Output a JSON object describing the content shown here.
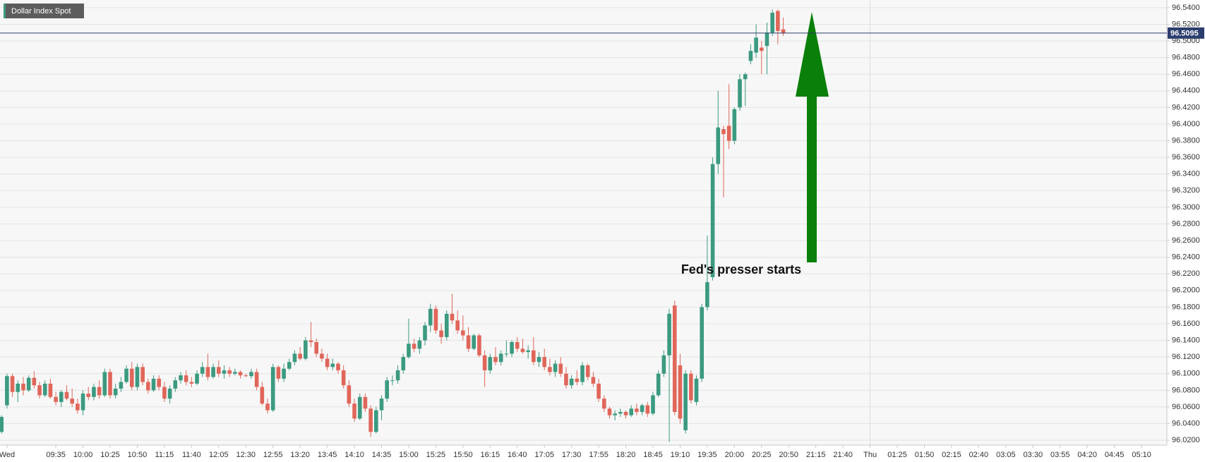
{
  "chart_data": {
    "type": "candlestick",
    "title": "Dollar Index Spot",
    "annotation": "Fed's presser starts",
    "last_price": 96.5095,
    "up_color": "#3b9a80",
    "down_color": "#e0665a",
    "last_price_color": "#2c3e6e",
    "arrow_color": "#0a800a",
    "grid": true,
    "ylim": [
      96.015,
      96.545
    ],
    "yticks": [
      {
        "value": 96.02,
        "label": "96.0200"
      },
      {
        "value": 96.04,
        "label": "96.0400"
      },
      {
        "value": 96.06,
        "label": "96.0600"
      },
      {
        "value": 96.08,
        "label": "96.0800"
      },
      {
        "value": 96.1,
        "label": "96.1000"
      },
      {
        "value": 96.12,
        "label": "96.1200"
      },
      {
        "value": 96.14,
        "label": "96.1400"
      },
      {
        "value": 96.16,
        "label": "96.1600"
      },
      {
        "value": 96.18,
        "label": "96.1800"
      },
      {
        "value": 96.2,
        "label": "96.2000"
      },
      {
        "value": 96.22,
        "label": "96.2200"
      },
      {
        "value": 96.24,
        "label": "96.2400"
      },
      {
        "value": 96.26,
        "label": "96.2600"
      },
      {
        "value": 96.28,
        "label": "96.2800"
      },
      {
        "value": 96.3,
        "label": "96.3000"
      },
      {
        "value": 96.32,
        "label": "96.3200"
      },
      {
        "value": 96.34,
        "label": "96.3400"
      },
      {
        "value": 96.36,
        "label": "96.3600"
      },
      {
        "value": 96.38,
        "label": "96.3800"
      },
      {
        "value": 96.4,
        "label": "96.4000"
      },
      {
        "value": 96.42,
        "label": "96.4200"
      },
      {
        "value": 96.44,
        "label": "96.4400"
      },
      {
        "value": 96.46,
        "label": "96.4600"
      },
      {
        "value": 96.48,
        "label": "96.4800"
      },
      {
        "value": 96.5,
        "label": "96.5000"
      },
      {
        "value": 96.52,
        "label": "96.5200"
      },
      {
        "value": 96.54,
        "label": "96.5400"
      }
    ],
    "categories": [
      null,
      "Wed",
      null,
      null,
      null,
      null,
      null,
      null,
      null,
      null,
      "09:35",
      null,
      null,
      null,
      null,
      "10:00",
      null,
      null,
      null,
      null,
      "10:25",
      null,
      null,
      null,
      null,
      "10:50",
      null,
      null,
      null,
      null,
      "11:15",
      null,
      null,
      null,
      null,
      "11:40",
      null,
      null,
      null,
      null,
      "12:05",
      null,
      null,
      null,
      null,
      "12:30",
      null,
      null,
      null,
      null,
      "12:55",
      null,
      null,
      null,
      null,
      "13:20",
      null,
      null,
      null,
      null,
      "13:45",
      null,
      null,
      null,
      null,
      "14:10",
      null,
      null,
      null,
      null,
      "14:35",
      null,
      null,
      null,
      null,
      "15:00",
      null,
      null,
      null,
      null,
      "15:25",
      null,
      null,
      null,
      null,
      "15:50",
      null,
      null,
      null,
      null,
      "16:15",
      null,
      null,
      null,
      null,
      "16:40",
      null,
      null,
      null,
      null,
      "17:05",
      null,
      null,
      null,
      null,
      "17:30",
      null,
      null,
      null,
      null,
      "17:55",
      null,
      null,
      null,
      null,
      "18:20",
      null,
      null,
      null,
      null,
      "18:45",
      null,
      null,
      null,
      null,
      "19:10",
      null,
      null,
      null,
      null,
      "19:35",
      null,
      null,
      null,
      null,
      "20:00",
      null,
      null,
      null,
      null,
      "20:25",
      null,
      null,
      null,
      null,
      "20:50",
      null,
      null,
      null,
      null,
      "21:15",
      null,
      null,
      null,
      null,
      "21:40",
      null,
      null,
      null,
      null,
      "Thu",
      null,
      null,
      null,
      null,
      "01:25",
      null,
      null,
      null,
      null,
      "01:50",
      null,
      null,
      null,
      null,
      "02:15",
      null,
      null,
      null,
      null,
      "02:40",
      null,
      null,
      null,
      null,
      "03:05",
      null,
      null,
      null,
      null,
      "03:30",
      null,
      null,
      null,
      null,
      "03:55",
      null,
      null,
      null,
      null,
      "04:20",
      null,
      null,
      null,
      null,
      "04:45",
      null,
      null,
      null,
      null,
      "05:10",
      null,
      null,
      null,
      null
    ],
    "open": [
      96.03,
      96.062,
      96.097,
      96.078,
      96.088,
      96.08,
      96.095,
      96.086,
      96.074,
      96.088,
      96.072,
      96.066,
      96.078,
      96.07,
      96.064,
      96.056,
      96.076,
      96.072,
      96.084,
      96.074,
      96.102,
      96.074,
      96.082,
      96.09,
      96.106,
      96.084,
      96.108,
      96.09,
      96.08,
      96.094,
      96.084,
      96.07,
      96.082,
      96.092,
      96.098,
      96.09,
      96.088,
      96.1,
      96.108,
      96.096,
      96.108,
      96.1,
      96.104,
      96.1,
      96.102,
      96.098,
      96.097,
      96.102,
      96.084,
      96.064,
      96.056,
      96.108,
      96.094,
      96.106,
      96.114,
      96.124,
      96.118,
      96.14,
      96.138,
      96.124,
      96.118,
      96.108,
      96.112,
      96.104,
      96.086,
      96.064,
      96.046,
      96.072,
      96.058,
      96.03,
      96.056,
      96.07,
      96.092,
      96.092,
      96.104,
      96.12,
      96.136,
      96.13,
      96.14,
      96.158,
      96.178,
      96.152,
      96.144,
      96.172,
      96.164,
      96.152,
      96.146,
      96.13,
      96.146,
      96.122,
      96.104,
      96.12,
      96.114,
      96.124,
      96.124,
      96.138,
      96.13,
      96.126,
      96.128,
      96.114,
      96.12,
      96.108,
      96.102,
      96.112,
      96.1,
      96.086,
      96.094,
      96.09,
      96.11,
      96.096,
      96.088,
      96.07,
      96.058,
      96.05,
      96.052,
      96.054,
      96.05,
      96.058,
      96.054,
      96.062,
      96.052,
      96.074,
      96.1,
      96.122,
      96.182,
      96.11,
      96.032,
      96.1,
      96.066,
      96.094,
      96.18,
      96.216,
      96.352,
      96.394,
      96.398,
      96.38,
      96.42,
      96.454,
      96.476,
      96.486,
      96.492,
      96.494,
      96.51,
      96.536,
      96.514,
      null,
      null,
      null,
      null,
      null,
      null,
      null,
      null,
      null,
      null,
      null,
      null,
      null,
      null,
      null,
      null,
      null,
      null,
      null,
      null,
      null,
      null,
      null,
      null,
      null,
      null,
      null,
      null,
      null,
      null,
      null,
      null,
      null,
      null,
      null,
      null,
      null,
      null,
      null,
      null,
      null,
      null,
      null,
      null,
      null,
      null,
      null,
      null,
      null,
      null,
      null,
      null,
      null,
      null,
      null,
      null,
      null,
      null,
      null,
      null,
      null,
      null,
      null,
      null,
      null,
      null,
      null,
      null,
      null,
      null
    ],
    "high": [
      96.05,
      96.1,
      96.1,
      96.092,
      96.096,
      96.098,
      96.103,
      96.09,
      96.092,
      96.094,
      96.078,
      96.08,
      96.086,
      96.082,
      96.07,
      96.08,
      96.084,
      96.088,
      96.092,
      96.106,
      96.106,
      96.088,
      96.096,
      96.11,
      96.114,
      96.112,
      96.112,
      96.094,
      96.098,
      96.098,
      96.09,
      96.086,
      96.096,
      96.102,
      96.104,
      96.096,
      96.104,
      96.114,
      96.124,
      96.112,
      96.116,
      96.11,
      96.108,
      96.106,
      96.104,
      96.1,
      96.106,
      96.106,
      96.09,
      96.07,
      96.112,
      96.11,
      96.112,
      96.118,
      96.128,
      96.132,
      96.144,
      96.162,
      96.142,
      96.13,
      96.124,
      96.118,
      96.114,
      96.11,
      96.092,
      96.07,
      96.076,
      96.076,
      96.062,
      96.06,
      96.074,
      96.096,
      96.098,
      96.11,
      96.124,
      96.166,
      96.142,
      96.144,
      96.162,
      96.184,
      96.182,
      96.16,
      96.176,
      96.196,
      96.176,
      96.17,
      96.156,
      96.148,
      96.148,
      96.128,
      96.124,
      96.132,
      96.128,
      96.14,
      96.14,
      96.144,
      96.142,
      96.134,
      96.144,
      96.126,
      96.13,
      96.118,
      96.116,
      96.12,
      96.108,
      96.098,
      96.104,
      96.114,
      96.112,
      96.102,
      96.094,
      96.074,
      96.06,
      96.056,
      96.058,
      96.056,
      96.062,
      96.064,
      96.064,
      96.066,
      96.078,
      96.104,
      96.128,
      96.178,
      96.188,
      96.124,
      96.104,
      96.104,
      96.098,
      96.184,
      96.266,
      96.36,
      96.44,
      96.398,
      96.448,
      96.42,
      96.46,
      96.462,
      96.496,
      96.52,
      96.5,
      96.522,
      96.538,
      96.538,
      96.528,
      null,
      null,
      null,
      null,
      null,
      null,
      null,
      null,
      null,
      null,
      null,
      null,
      null,
      null,
      null,
      null,
      null,
      null,
      null,
      null,
      null,
      null,
      null,
      null,
      null,
      null,
      null,
      null,
      null,
      null,
      null,
      null,
      null,
      null,
      null,
      null,
      null,
      null,
      null,
      null,
      null,
      null,
      null,
      null,
      null,
      null,
      null,
      null,
      null,
      null,
      null,
      null,
      null,
      null,
      null,
      null,
      null,
      null,
      null,
      null,
      null,
      null,
      null,
      null,
      null,
      null,
      null,
      null,
      null,
      null
    ],
    "low": [
      96.028,
      96.058,
      96.072,
      96.066,
      96.074,
      96.078,
      96.082,
      96.07,
      96.072,
      96.07,
      96.062,
      96.06,
      96.068,
      96.06,
      96.052,
      96.05,
      96.068,
      96.068,
      96.07,
      96.072,
      96.07,
      96.07,
      96.078,
      96.088,
      96.08,
      96.08,
      96.086,
      96.076,
      96.078,
      96.08,
      96.066,
      96.064,
      96.078,
      96.088,
      96.086,
      96.084,
      96.086,
      96.096,
      96.092,
      96.094,
      96.096,
      96.094,
      96.096,
      96.098,
      96.094,
      96.096,
      96.094,
      96.08,
      96.062,
      96.052,
      96.054,
      96.09,
      96.09,
      96.104,
      96.11,
      96.116,
      96.116,
      96.132,
      96.12,
      96.114,
      96.104,
      96.104,
      96.1,
      96.082,
      96.06,
      96.042,
      96.044,
      96.054,
      96.024,
      96.028,
      96.044,
      96.066,
      96.086,
      96.088,
      96.1,
      96.118,
      96.126,
      96.124,
      96.134,
      96.15,
      96.148,
      96.136,
      96.14,
      96.16,
      96.148,
      96.14,
      96.126,
      96.128,
      96.12,
      96.084,
      96.1,
      96.11,
      96.11,
      96.12,
      96.12,
      96.126,
      96.124,
      96.118,
      96.11,
      96.108,
      96.104,
      96.098,
      96.096,
      96.096,
      96.082,
      96.082,
      96.086,
      96.086,
      96.092,
      96.084,
      96.066,
      96.054,
      96.046,
      96.044,
      96.048,
      96.046,
      96.048,
      96.05,
      96.05,
      96.048,
      96.05,
      96.072,
      96.096,
      96.018,
      96.05,
      96.04,
      96.028,
      96.064,
      96.062,
      96.09,
      96.176,
      96.212,
      96.34,
      96.312,
      96.37,
      96.376,
      96.416,
      96.422,
      96.472,
      96.48,
      96.46,
      96.46,
      96.506,
      96.496,
      96.506,
      null,
      null,
      null,
      null,
      null,
      null,
      null,
      null,
      null,
      null,
      null,
      null,
      null,
      null,
      null,
      null,
      null,
      null,
      null,
      null,
      null,
      null,
      null,
      null,
      null,
      null,
      null,
      null,
      null,
      null,
      null,
      null,
      null,
      null,
      null,
      null,
      null,
      null,
      null,
      null,
      null,
      null,
      null,
      null,
      null,
      null,
      null,
      null,
      null,
      null,
      null,
      null,
      null,
      null,
      null,
      null,
      null,
      null,
      null,
      null,
      null,
      null,
      null,
      null,
      null,
      null,
      null,
      null,
      null,
      null
    ],
    "close": [
      96.048,
      96.097,
      96.078,
      96.088,
      96.08,
      96.095,
      96.086,
      96.074,
      96.088,
      96.072,
      96.066,
      96.078,
      96.07,
      96.064,
      96.056,
      96.076,
      96.072,
      96.084,
      96.074,
      96.102,
      96.074,
      96.082,
      96.09,
      96.106,
      96.084,
      96.108,
      96.09,
      96.08,
      96.094,
      96.084,
      96.07,
      96.082,
      96.092,
      96.098,
      96.09,
      96.088,
      96.1,
      96.108,
      96.096,
      96.108,
      96.1,
      96.104,
      96.1,
      96.102,
      96.098,
      96.097,
      96.102,
      96.084,
      96.064,
      96.056,
      96.108,
      96.094,
      96.106,
      96.114,
      96.124,
      96.118,
      96.14,
      96.138,
      96.124,
      96.118,
      96.108,
      96.112,
      96.104,
      96.086,
      96.064,
      96.046,
      96.072,
      96.058,
      96.03,
      96.056,
      96.07,
      96.092,
      96.092,
      96.104,
      96.12,
      96.136,
      96.13,
      96.14,
      96.158,
      96.178,
      96.152,
      96.144,
      96.172,
      96.164,
      96.152,
      96.146,
      96.13,
      96.146,
      96.122,
      96.104,
      96.12,
      96.114,
      96.124,
      96.124,
      96.138,
      96.13,
      96.126,
      96.128,
      96.114,
      96.12,
      96.108,
      96.102,
      96.112,
      96.1,
      96.086,
      96.094,
      96.09,
      96.11,
      96.096,
      96.088,
      96.07,
      96.058,
      96.05,
      96.052,
      96.054,
      96.05,
      96.058,
      96.054,
      96.062,
      96.052,
      96.074,
      96.1,
      96.122,
      96.172,
      96.054,
      96.046,
      96.1,
      96.068,
      96.094,
      96.18,
      96.21,
      96.352,
      96.396,
      96.388,
      96.38,
      96.418,
      96.454,
      96.46,
      96.488,
      96.504,
      96.488,
      96.51,
      96.534,
      96.512,
      96.5095,
      null,
      null,
      null,
      null,
      null,
      null,
      null,
      null,
      null,
      null,
      null,
      null,
      null,
      null,
      null,
      null,
      null,
      null,
      null,
      null,
      null,
      null,
      null,
      null,
      null,
      null,
      null,
      null,
      null,
      null,
      null,
      null,
      null,
      null,
      null,
      null,
      null,
      null,
      null,
      null,
      null,
      null,
      null,
      null,
      null,
      null,
      null,
      null,
      null,
      null,
      null,
      null,
      null,
      null,
      null,
      null,
      null,
      null,
      null,
      null,
      null,
      null,
      null,
      null,
      null,
      null,
      null,
      null,
      null,
      null
    ]
  }
}
